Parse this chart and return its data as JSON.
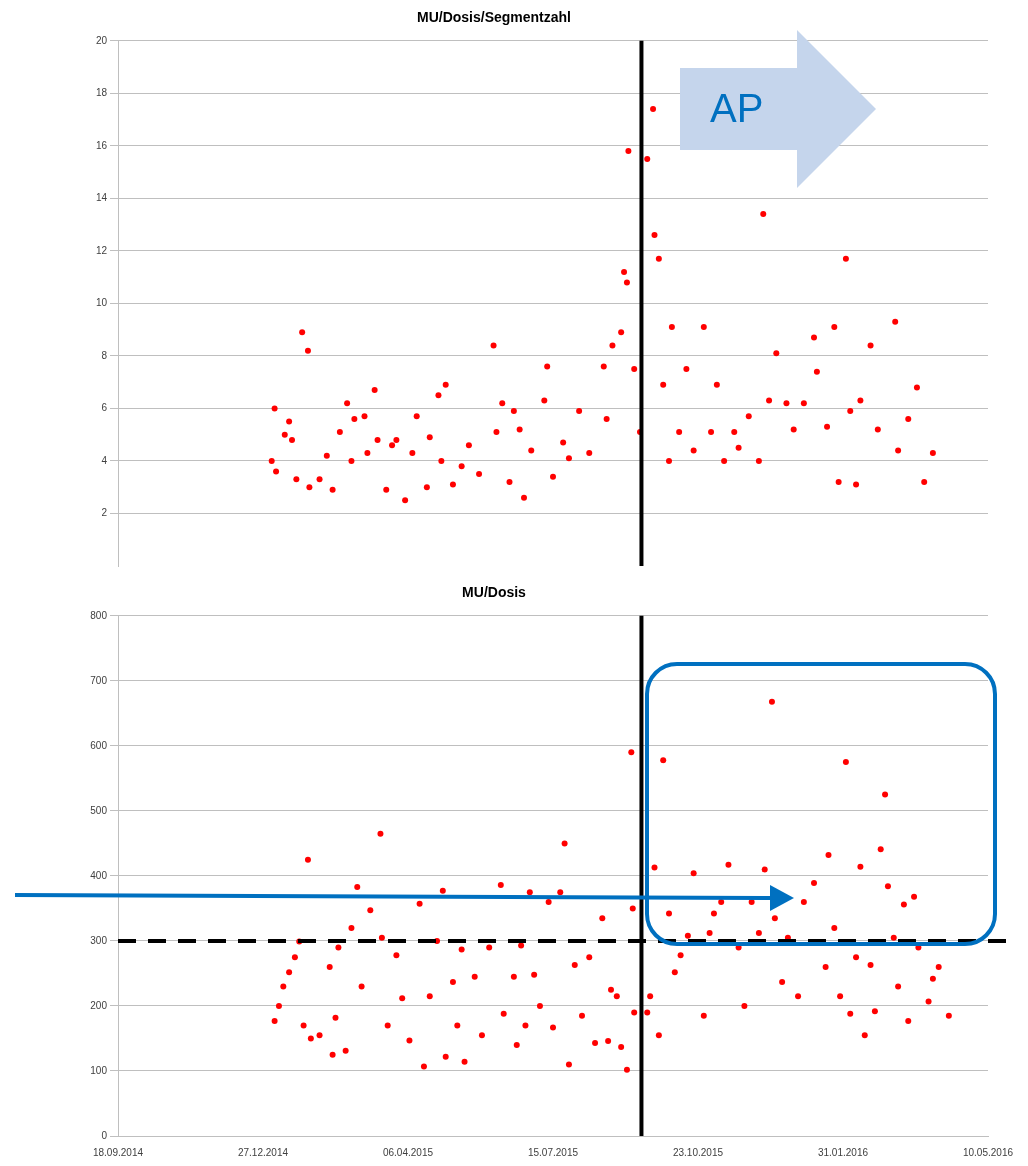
{
  "chart_data": [
    {
      "type": "scatter",
      "title": "MU/Dosis/Segmentzahl",
      "color": "#ff0000",
      "marker": "circle",
      "grid": "y",
      "tick_labels": "y",
      "annotations": [
        "AP"
      ],
      "ref_lines": [
        {
          "axis": "x",
          "value": "2015-09-14",
          "color": "#000000",
          "line_style": "solid"
        }
      ],
      "xlim": [
        "2014-09-18",
        "2016-05-10"
      ],
      "ylim": [
        0,
        20
      ],
      "yticks": [
        2,
        4,
        6,
        8,
        10,
        12,
        14,
        16,
        18,
        20
      ],
      "x": [
        "2015-01-02",
        "2015-01-04",
        "2015-01-05",
        "2015-01-11",
        "2015-01-14",
        "2015-01-16",
        "2015-01-19",
        "2015-01-23",
        "2015-01-27",
        "2015-01-28",
        "2015-02-04",
        "2015-02-09",
        "2015-02-13",
        "2015-02-18",
        "2015-02-23",
        "2015-02-26",
        "2015-02-28",
        "2015-03-07",
        "2015-03-09",
        "2015-03-14",
        "2015-03-16",
        "2015-03-22",
        "2015-03-26",
        "2015-03-29",
        "2015-04-04",
        "2015-04-09",
        "2015-04-12",
        "2015-04-19",
        "2015-04-21",
        "2015-04-27",
        "2015-04-29",
        "2015-05-02",
        "2015-05-07",
        "2015-05-13",
        "2015-05-18",
        "2015-05-25",
        "2015-06-04",
        "2015-06-06",
        "2015-06-10",
        "2015-06-15",
        "2015-06-18",
        "2015-06-22",
        "2015-06-25",
        "2015-06-30",
        "2015-07-09",
        "2015-07-11",
        "2015-07-15",
        "2015-07-22",
        "2015-07-26",
        "2015-08-02",
        "2015-08-09",
        "2015-08-19",
        "2015-08-21",
        "2015-08-25",
        "2015-08-31",
        "2015-09-02",
        "2015-09-04",
        "2015-09-05",
        "2015-09-09",
        "2015-09-13",
        "2015-09-18",
        "2015-09-22",
        "2015-09-23",
        "2015-09-26",
        "2015-09-29",
        "2015-10-03",
        "2015-10-05",
        "2015-10-10",
        "2015-10-15",
        "2015-10-20",
        "2015-10-27",
        "2015-11-01",
        "2015-11-05",
        "2015-11-10",
        "2015-11-17",
        "2015-11-20",
        "2015-11-27",
        "2015-12-04",
        "2015-12-07",
        "2015-12-11",
        "2015-12-16",
        "2015-12-23",
        "2015-12-28",
        "2016-01-04",
        "2016-01-11",
        "2016-01-13",
        "2016-01-20",
        "2016-01-25",
        "2016-01-28",
        "2016-02-02",
        "2016-02-05",
        "2016-02-09",
        "2016-02-12",
        "2016-02-19",
        "2016-02-24",
        "2016-03-07",
        "2016-03-09",
        "2016-03-16",
        "2016-03-22",
        "2016-03-27",
        "2016-04-02"
      ],
      "values": [
        4.0,
        6.0,
        3.6,
        5.0,
        5.5,
        4.8,
        3.3,
        8.9,
        8.2,
        3.0,
        3.3,
        4.2,
        2.9,
        5.1,
        6.2,
        4.0,
        5.6,
        5.7,
        4.3,
        6.7,
        4.8,
        2.9,
        4.6,
        4.8,
        2.5,
        4.3,
        5.7,
        3.0,
        4.9,
        6.5,
        4.0,
        6.9,
        3.1,
        3.8,
        4.6,
        3.5,
        8.4,
        5.1,
        6.2,
        3.2,
        5.9,
        5.2,
        2.6,
        4.4,
        6.3,
        7.6,
        3.4,
        4.7,
        4.1,
        5.9,
        4.3,
        7.6,
        5.6,
        8.4,
        8.9,
        11.2,
        10.8,
        15.8,
        7.5,
        5.1,
        15.5,
        17.4,
        12.6,
        11.7,
        6.9,
        4.0,
        9.1,
        5.1,
        7.5,
        4.4,
        9.1,
        5.1,
        6.9,
        4.0,
        5.1,
        4.5,
        5.7,
        4.0,
        13.4,
        6.3,
        8.1,
        6.2,
        5.2,
        6.2,
        8.7,
        7.4,
        5.3,
        9.1,
        3.2,
        11.7,
        5.9,
        3.1,
        6.3,
        8.4,
        5.2,
        9.3,
        4.4,
        5.6,
        6.8,
        3.2,
        4.3
      ]
    },
    {
      "type": "scatter",
      "title": "MU/Dosis",
      "color": "#ff0000",
      "marker": "circle",
      "grid": "y",
      "ref_lines": [
        {
          "axis": "x",
          "value": "2015-09-14",
          "color": "#000000",
          "line_style": "solid"
        },
        {
          "axis": "y",
          "value": 300,
          "color": "#000000",
          "line_style": "dashed"
        }
      ],
      "xlim": [
        "2014-09-18",
        "2016-05-10"
      ],
      "xticks": [
        {
          "value": "2014-09-18",
          "label": "18.09.2014"
        },
        {
          "value": "2014-12-27",
          "label": "27.12.2014"
        },
        {
          "value": "2015-04-06",
          "label": "06.04.2015"
        },
        {
          "value": "2015-07-15",
          "label": "15.07.2015"
        },
        {
          "value": "2015-10-23",
          "label": "23.10.2015"
        },
        {
          "value": "2016-01-31",
          "label": "31.01.2016"
        },
        {
          "value": "2016-05-10",
          "label": "10.05.2016"
        }
      ],
      "ylim": [
        0,
        800
      ],
      "yticks": [
        0,
        100,
        200,
        300,
        400,
        500,
        600,
        700,
        800
      ],
      "x": [
        "2015-01-04",
        "2015-01-07",
        "2015-01-10",
        "2015-01-14",
        "2015-01-18",
        "2015-01-21",
        "2015-01-24",
        "2015-01-27",
        "2015-01-29",
        "2015-02-04",
        "2015-02-11",
        "2015-02-13",
        "2015-02-15",
        "2015-02-17",
        "2015-02-22",
        "2015-02-26",
        "2015-03-02",
        "2015-03-05",
        "2015-03-11",
        "2015-03-18",
        "2015-03-19",
        "2015-03-23",
        "2015-03-29",
        "2015-04-02",
        "2015-04-07",
        "2015-04-14",
        "2015-04-17",
        "2015-04-21",
        "2015-04-26",
        "2015-04-30",
        "2015-05-02",
        "2015-05-07",
        "2015-05-10",
        "2015-05-13",
        "2015-05-15",
        "2015-05-22",
        "2015-05-27",
        "2015-06-01",
        "2015-06-09",
        "2015-06-11",
        "2015-06-18",
        "2015-06-20",
        "2015-06-23",
        "2015-06-26",
        "2015-06-29",
        "2015-07-02",
        "2015-07-06",
        "2015-07-12",
        "2015-07-15",
        "2015-07-20",
        "2015-07-23",
        "2015-07-26",
        "2015-07-30",
        "2015-08-04",
        "2015-08-09",
        "2015-08-13",
        "2015-08-18",
        "2015-08-22",
        "2015-08-24",
        "2015-08-28",
        "2015-08-31",
        "2015-09-04",
        "2015-09-07",
        "2015-09-08",
        "2015-09-09",
        "2015-09-18",
        "2015-09-20",
        "2015-09-23",
        "2015-09-26",
        "2015-09-29",
        "2015-10-03",
        "2015-10-07",
        "2015-10-11",
        "2015-10-16",
        "2015-10-20",
        "2015-10-27",
        "2015-10-31",
        "2015-11-03",
        "2015-11-08",
        "2015-11-13",
        "2015-11-20",
        "2015-11-24",
        "2015-11-29",
        "2015-12-04",
        "2015-12-08",
        "2015-12-13",
        "2015-12-15",
        "2015-12-20",
        "2015-12-24",
        "2015-12-31",
        "2016-01-04",
        "2016-01-11",
        "2016-01-19",
        "2016-01-21",
        "2016-01-25",
        "2016-01-29",
        "2016-02-02",
        "2016-02-05",
        "2016-02-09",
        "2016-02-12",
        "2016-02-15",
        "2016-02-19",
        "2016-02-22",
        "2016-02-26",
        "2016-02-29",
        "2016-03-02",
        "2016-03-06",
        "2016-03-09",
        "2016-03-13",
        "2016-03-16",
        "2016-03-20",
        "2016-03-23",
        "2016-03-30",
        "2016-04-02",
        "2016-04-06",
        "2016-04-13"
      ],
      "values": [
        177,
        200,
        230,
        252,
        275,
        299,
        170,
        425,
        150,
        155,
        260,
        125,
        182,
        290,
        131,
        320,
        383,
        230,
        347,
        465,
        305,
        170,
        278,
        212,
        147,
        357,
        107,
        215,
        300,
        377,
        122,
        237,
        170,
        287,
        114,
        245,
        155,
        290,
        386,
        188,
        245,
        140,
        293,
        170,
        375,
        248,
        200,
        360,
        167,
        375,
        450,
        110,
        263,
        185,
        275,
        143,
        335,
        146,
        225,
        215,
        137,
        102,
        590,
        350,
        190,
        190,
        215,
        413,
        155,
        578,
        342,
        252,
        278,
        308,
        404,
        185,
        312,
        342,
        360,
        417,
        290,
        200,
        360,
        312,
        410,
        668,
        335,
        237,
        305,
        215,
        360,
        389,
        260,
        432,
        320,
        215,
        575,
        188,
        275,
        414,
        155,
        263,
        192,
        441,
        525,
        384,
        305,
        230,
        356,
        177,
        368,
        290,
        207,
        242,
        260,
        185
      ]
    }
  ]
}
